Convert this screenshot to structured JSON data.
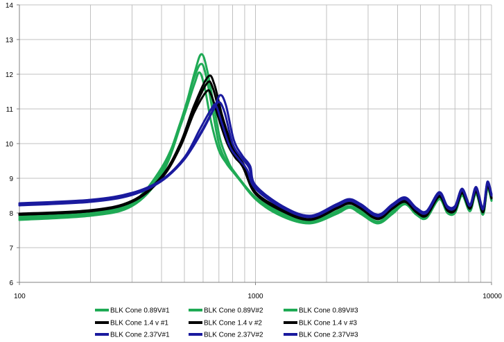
{
  "chart_data": {
    "type": "line",
    "title": "",
    "xlabel": "",
    "ylabel": "",
    "xscale": "log",
    "xlim": [
      100,
      10000
    ],
    "ylim": [
      6,
      14
    ],
    "x_ticks": [
      "100",
      "1000",
      "10000"
    ],
    "y_ticks": [
      "6",
      "7",
      "8",
      "9",
      "10",
      "11",
      "12",
      "13",
      "14"
    ],
    "grid": true,
    "legend_position": "bottom",
    "colors": {
      "green": "#1faa55",
      "black": "#000000",
      "blue": "#1a1a9e",
      "grid": "#c0c0c0",
      "axis": "#808080"
    },
    "series": [
      {
        "name": "BLK Cone 0.89V#1",
        "color": "#1faa55",
        "points": [
          [
            100,
            7.9
          ],
          [
            200,
            8.0
          ],
          [
            300,
            8.3
          ],
          [
            400,
            9.3
          ],
          [
            480,
            10.5
          ],
          [
            550,
            11.7
          ],
          [
            580,
            12.05
          ],
          [
            610,
            11.6
          ],
          [
            650,
            10.6
          ],
          [
            700,
            9.8
          ],
          [
            750,
            9.45
          ],
          [
            800,
            9.2
          ],
          [
            1000,
            8.45
          ],
          [
            1300,
            8.0
          ],
          [
            1700,
            7.75
          ],
          [
            2200,
            8.05
          ],
          [
            2500,
            8.2
          ],
          [
            2800,
            8.05
          ],
          [
            3300,
            7.75
          ],
          [
            3800,
            8.05
          ],
          [
            4300,
            8.3
          ],
          [
            4800,
            8.0
          ],
          [
            5300,
            7.9
          ],
          [
            6000,
            8.45
          ],
          [
            6500,
            8.05
          ],
          [
            7000,
            8.05
          ],
          [
            7500,
            8.55
          ],
          [
            8100,
            8.1
          ],
          [
            8600,
            8.6
          ],
          [
            9200,
            8.0
          ],
          [
            9600,
            8.75
          ],
          [
            10000,
            8.4
          ]
        ]
      },
      {
        "name": "BLK Cone 0.89V#2",
        "color": "#1faa55",
        "points": [
          [
            100,
            7.85
          ],
          [
            200,
            7.95
          ],
          [
            300,
            8.25
          ],
          [
            400,
            9.2
          ],
          [
            480,
            10.6
          ],
          [
            550,
            11.9
          ],
          [
            590,
            12.3
          ],
          [
            620,
            11.9
          ],
          [
            660,
            10.9
          ],
          [
            700,
            10.0
          ],
          [
            750,
            9.5
          ],
          [
            800,
            9.25
          ],
          [
            1000,
            8.45
          ],
          [
            1300,
            7.95
          ],
          [
            1700,
            7.72
          ],
          [
            2200,
            8.0
          ],
          [
            2500,
            8.17
          ],
          [
            2800,
            8.0
          ],
          [
            3300,
            7.72
          ],
          [
            3800,
            8.0
          ],
          [
            4300,
            8.27
          ],
          [
            4800,
            7.97
          ],
          [
            5300,
            7.87
          ],
          [
            6000,
            8.42
          ],
          [
            6500,
            8.02
          ],
          [
            7000,
            8.02
          ],
          [
            7500,
            8.52
          ],
          [
            8100,
            8.07
          ],
          [
            8600,
            8.57
          ],
          [
            9200,
            7.97
          ],
          [
            9600,
            8.72
          ],
          [
            10000,
            8.37
          ]
        ]
      },
      {
        "name": "BLK Cone 0.89V#3",
        "color": "#1faa55",
        "points": [
          [
            100,
            7.8
          ],
          [
            200,
            7.92
          ],
          [
            300,
            8.2
          ],
          [
            400,
            9.1
          ],
          [
            480,
            10.5
          ],
          [
            550,
            12.0
          ],
          [
            590,
            12.58
          ],
          [
            625,
            12.1
          ],
          [
            670,
            11.0
          ],
          [
            710,
            10.1
          ],
          [
            760,
            9.55
          ],
          [
            810,
            9.2
          ],
          [
            1000,
            8.4
          ],
          [
            1300,
            7.9
          ],
          [
            1700,
            7.7
          ],
          [
            2200,
            7.97
          ],
          [
            2500,
            8.15
          ],
          [
            2800,
            7.97
          ],
          [
            3300,
            7.7
          ],
          [
            3800,
            7.97
          ],
          [
            4300,
            8.25
          ],
          [
            4800,
            7.95
          ],
          [
            5300,
            7.85
          ],
          [
            6000,
            8.4
          ],
          [
            6500,
            8.0
          ],
          [
            7000,
            8.0
          ],
          [
            7500,
            8.5
          ],
          [
            8100,
            8.05
          ],
          [
            8600,
            8.55
          ],
          [
            9200,
            7.95
          ],
          [
            9600,
            8.7
          ],
          [
            10000,
            8.35
          ]
        ]
      },
      {
        "name": "BLK Cone 1.4 v #1",
        "color": "#000000",
        "points": [
          [
            100,
            7.95
          ],
          [
            200,
            8.05
          ],
          [
            300,
            8.35
          ],
          [
            400,
            9.0
          ],
          [
            480,
            9.9
          ],
          [
            550,
            10.9
          ],
          [
            620,
            11.5
          ],
          [
            650,
            11.4
          ],
          [
            700,
            10.7
          ],
          [
            760,
            10.0
          ],
          [
            820,
            9.6
          ],
          [
            880,
            9.35
          ],
          [
            1000,
            8.6
          ],
          [
            1300,
            8.1
          ],
          [
            1700,
            7.82
          ],
          [
            2200,
            8.15
          ],
          [
            2500,
            8.3
          ],
          [
            2800,
            8.15
          ],
          [
            3300,
            7.85
          ],
          [
            3800,
            8.15
          ],
          [
            4300,
            8.35
          ],
          [
            4800,
            8.05
          ],
          [
            5300,
            7.95
          ],
          [
            6000,
            8.5
          ],
          [
            6500,
            8.1
          ],
          [
            7000,
            8.1
          ],
          [
            7500,
            8.6
          ],
          [
            8100,
            8.15
          ],
          [
            8600,
            8.65
          ],
          [
            9200,
            8.05
          ],
          [
            9600,
            8.8
          ],
          [
            10000,
            8.45
          ]
        ]
      },
      {
        "name": "BLK Cone 1.4 v #2",
        "color": "#000000",
        "points": [
          [
            100,
            7.95
          ],
          [
            200,
            8.05
          ],
          [
            300,
            8.32
          ],
          [
            400,
            9.0
          ],
          [
            480,
            9.95
          ],
          [
            550,
            11.0
          ],
          [
            625,
            11.75
          ],
          [
            660,
            11.6
          ],
          [
            710,
            10.8
          ],
          [
            770,
            10.05
          ],
          [
            830,
            9.6
          ],
          [
            890,
            9.3
          ],
          [
            1000,
            8.55
          ],
          [
            1300,
            8.05
          ],
          [
            1700,
            7.8
          ],
          [
            2200,
            8.12
          ],
          [
            2500,
            8.27
          ],
          [
            2800,
            8.12
          ],
          [
            3300,
            7.82
          ],
          [
            3800,
            8.12
          ],
          [
            4300,
            8.32
          ],
          [
            4800,
            8.02
          ],
          [
            5300,
            7.92
          ],
          [
            6000,
            8.47
          ],
          [
            6500,
            8.07
          ],
          [
            7000,
            8.07
          ],
          [
            7500,
            8.57
          ],
          [
            8100,
            8.12
          ],
          [
            8600,
            8.62
          ],
          [
            9200,
            8.02
          ],
          [
            9600,
            8.77
          ],
          [
            10000,
            8.42
          ]
        ]
      },
      {
        "name": "BLK Cone 1.4 v #3",
        "color": "#000000",
        "points": [
          [
            100,
            7.98
          ],
          [
            200,
            8.08
          ],
          [
            300,
            8.35
          ],
          [
            400,
            9.05
          ],
          [
            480,
            10.0
          ],
          [
            550,
            11.1
          ],
          [
            630,
            11.93
          ],
          [
            670,
            11.7
          ],
          [
            720,
            10.85
          ],
          [
            780,
            10.1
          ],
          [
            840,
            9.65
          ],
          [
            900,
            9.35
          ],
          [
            1000,
            8.6
          ],
          [
            1300,
            8.08
          ],
          [
            1700,
            7.82
          ],
          [
            2200,
            8.15
          ],
          [
            2500,
            8.3
          ],
          [
            2800,
            8.15
          ],
          [
            3300,
            7.85
          ],
          [
            3800,
            8.15
          ],
          [
            4300,
            8.35
          ],
          [
            4800,
            8.05
          ],
          [
            5300,
            7.95
          ],
          [
            6000,
            8.5
          ],
          [
            6500,
            8.1
          ],
          [
            7000,
            8.1
          ],
          [
            7500,
            8.6
          ],
          [
            8100,
            8.15
          ],
          [
            8600,
            8.65
          ],
          [
            9200,
            8.05
          ],
          [
            9600,
            8.8
          ],
          [
            10000,
            8.45
          ]
        ]
      },
      {
        "name": "BLK Cone 2.37V#1",
        "color": "#1a1a9e",
        "points": [
          [
            100,
            8.25
          ],
          [
            200,
            8.35
          ],
          [
            300,
            8.55
          ],
          [
            400,
            8.95
          ],
          [
            500,
            9.6
          ],
          [
            580,
            10.4
          ],
          [
            650,
            11.0
          ],
          [
            680,
            11.1
          ],
          [
            720,
            10.6
          ],
          [
            780,
            9.9
          ],
          [
            850,
            9.55
          ],
          [
            920,
            9.25
          ],
          [
            1000,
            8.7
          ],
          [
            1300,
            8.15
          ],
          [
            1700,
            7.88
          ],
          [
            2200,
            8.2
          ],
          [
            2500,
            8.35
          ],
          [
            2800,
            8.2
          ],
          [
            3300,
            7.9
          ],
          [
            3800,
            8.2
          ],
          [
            4300,
            8.4
          ],
          [
            4800,
            8.1
          ],
          [
            5300,
            8.0
          ],
          [
            6000,
            8.55
          ],
          [
            6500,
            8.15
          ],
          [
            7000,
            8.15
          ],
          [
            7500,
            8.65
          ],
          [
            8100,
            8.2
          ],
          [
            8600,
            8.7
          ],
          [
            9200,
            8.1
          ],
          [
            9600,
            8.85
          ],
          [
            10000,
            8.5
          ]
        ]
      },
      {
        "name": "BLK Cone 2.37V#2",
        "color": "#1a1a9e",
        "points": [
          [
            100,
            8.28
          ],
          [
            200,
            8.38
          ],
          [
            300,
            8.58
          ],
          [
            400,
            8.95
          ],
          [
            500,
            9.55
          ],
          [
            590,
            10.35
          ],
          [
            660,
            10.95
          ],
          [
            700,
            11.2
          ],
          [
            740,
            10.9
          ],
          [
            800,
            10.0
          ],
          [
            870,
            9.6
          ],
          [
            940,
            9.3
          ],
          [
            1000,
            8.75
          ],
          [
            1300,
            8.18
          ],
          [
            1700,
            7.9
          ],
          [
            2200,
            8.22
          ],
          [
            2500,
            8.37
          ],
          [
            2800,
            8.22
          ],
          [
            3300,
            7.92
          ],
          [
            3800,
            8.22
          ],
          [
            4300,
            8.42
          ],
          [
            4800,
            8.12
          ],
          [
            5300,
            8.02
          ],
          [
            6000,
            8.57
          ],
          [
            6500,
            8.17
          ],
          [
            7000,
            8.17
          ],
          [
            7500,
            8.67
          ],
          [
            8100,
            8.22
          ],
          [
            8600,
            8.72
          ],
          [
            9200,
            8.12
          ],
          [
            9600,
            8.87
          ],
          [
            10000,
            8.52
          ]
        ]
      },
      {
        "name": "BLK Cone 2.37V#3",
        "color": "#1a1a9e",
        "points": [
          [
            100,
            8.22
          ],
          [
            200,
            8.32
          ],
          [
            300,
            8.52
          ],
          [
            400,
            8.92
          ],
          [
            500,
            9.55
          ],
          [
            600,
            10.4
          ],
          [
            670,
            11.05
          ],
          [
            710,
            11.4
          ],
          [
            750,
            11.1
          ],
          [
            810,
            10.1
          ],
          [
            880,
            9.65
          ],
          [
            950,
            9.35
          ],
          [
            1000,
            8.8
          ],
          [
            1300,
            8.2
          ],
          [
            1700,
            7.92
          ],
          [
            2200,
            8.25
          ],
          [
            2500,
            8.4
          ],
          [
            2800,
            8.25
          ],
          [
            3300,
            7.95
          ],
          [
            3800,
            8.25
          ],
          [
            4300,
            8.45
          ],
          [
            4800,
            8.15
          ],
          [
            5300,
            8.05
          ],
          [
            6000,
            8.6
          ],
          [
            6500,
            8.2
          ],
          [
            7000,
            8.2
          ],
          [
            7500,
            8.7
          ],
          [
            8100,
            8.25
          ],
          [
            8600,
            8.75
          ],
          [
            9200,
            8.15
          ],
          [
            9600,
            8.9
          ],
          [
            10000,
            8.55
          ]
        ]
      }
    ]
  }
}
